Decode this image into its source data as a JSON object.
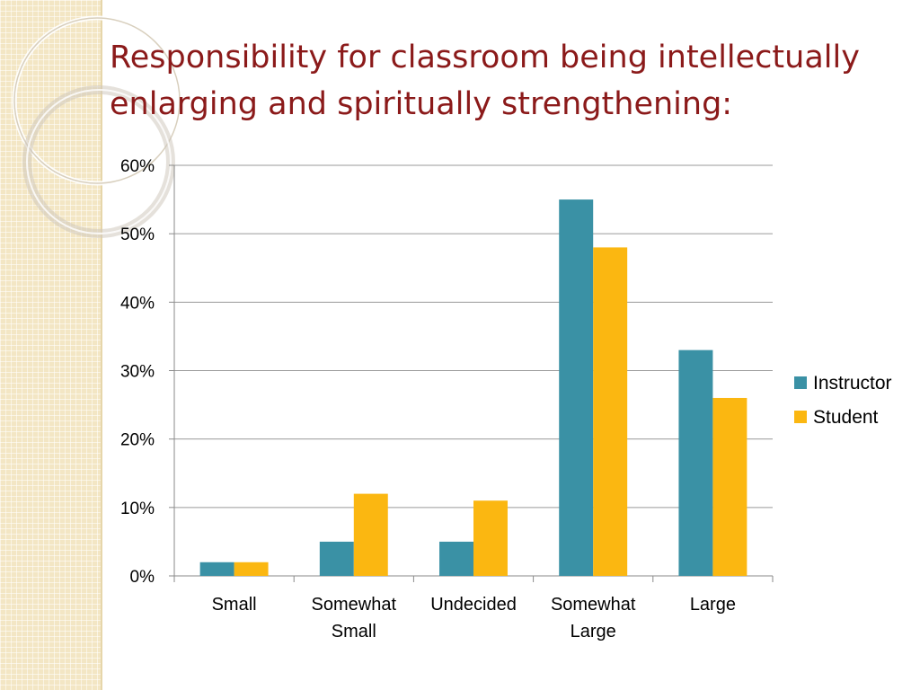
{
  "slide": {
    "title_line1": "Responsibility for classroom being intellectually",
    "title_line2": "enlarging and spiritually strengthening:",
    "accent_color": "#8b1a1a",
    "strip_color": "#f3e6c4"
  },
  "chart_data": {
    "type": "bar",
    "categories": [
      [
        "Small"
      ],
      [
        "Somewhat",
        "Small"
      ],
      [
        "Undecided"
      ],
      [
        "Somewhat",
        "Large"
      ],
      [
        "Large"
      ]
    ],
    "series": [
      {
        "name": "Instructor",
        "color": "#3a91a5",
        "values": [
          2,
          5,
          5,
          55,
          33
        ]
      },
      {
        "name": "Student",
        "color": "#fbb711",
        "values": [
          2,
          12,
          11,
          48,
          26
        ]
      }
    ],
    "yticks": [
      "0%",
      "10%",
      "20%",
      "30%",
      "40%",
      "50%",
      "60%"
    ],
    "ylim": [
      0,
      60
    ],
    "grid": true,
    "legend_position": "right"
  }
}
